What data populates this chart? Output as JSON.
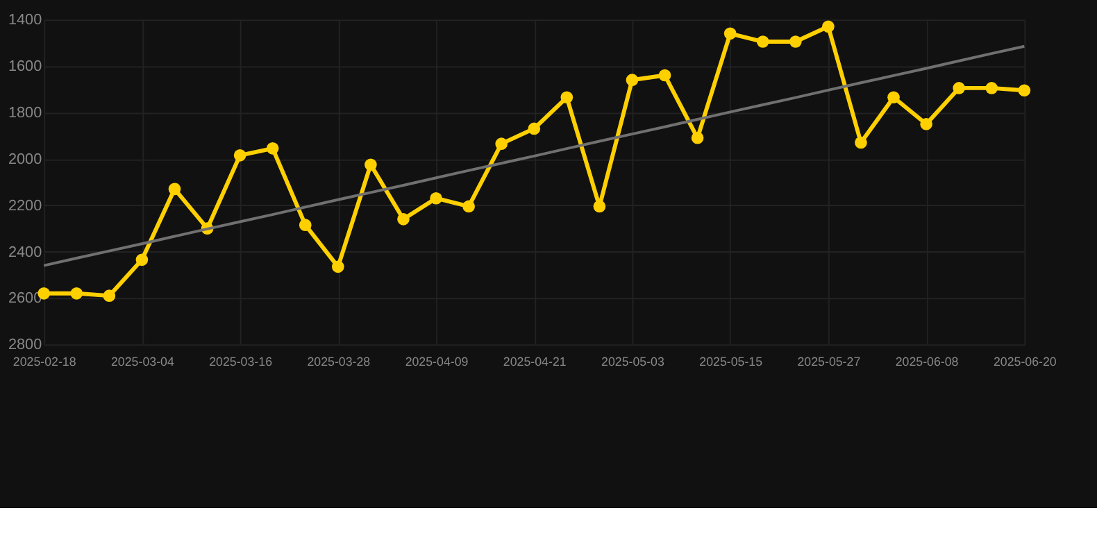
{
  "chart_data": {
    "type": "line",
    "categories": [
      "2025-02-18",
      null,
      null,
      "2025-03-04",
      null,
      null,
      "2025-03-16",
      null,
      null,
      "2025-03-28",
      null,
      null,
      "2025-04-09",
      null,
      null,
      "2025-04-21",
      null,
      null,
      "2025-05-03",
      null,
      null,
      "2025-05-15",
      null,
      null,
      "2025-05-27",
      null,
      null,
      "2025-06-08",
      null,
      null,
      "2025-06-20"
    ],
    "series": [
      {
        "color": "#ffd000",
        "marker": "circle",
        "values": [
          2580,
          2580,
          2590,
          2435,
          2130,
          2300,
          1985,
          1955,
          2285,
          2465,
          2025,
          2260,
          2170,
          2205,
          1935,
          1870,
          1735,
          2205,
          1660,
          1640,
          1910,
          1460,
          1495,
          1495,
          1430,
          1930,
          1735,
          1850,
          1695,
          1695,
          1705
        ]
      },
      {
        "type": "line",
        "color": "#707070",
        "marker": "none",
        "values": [
          2460,
          2428,
          2397,
          2366,
          2334,
          2302,
          2271,
          2240,
          2208,
          2176,
          2145,
          2114,
          2082,
          2050,
          2019,
          1988,
          1956,
          1924,
          1893,
          1862,
          1830,
          1798,
          1767,
          1736,
          1704,
          1672,
          1641,
          1610,
          1578,
          1546,
          1515
        ]
      }
    ],
    "ylim": [
      2800,
      1400
    ],
    "yticks": [
      1400,
      1600,
      1800,
      2000,
      2200,
      2400,
      2600,
      2800
    ],
    "grid": true
  }
}
